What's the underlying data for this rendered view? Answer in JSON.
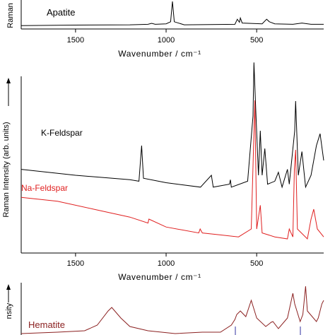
{
  "chart_data": [
    {
      "type": "line",
      "title": "",
      "xlabel": "Wavenumber / cm⁻¹",
      "ylabel": "Raman",
      "xlim": [
        1800,
        130
      ],
      "x_reversed": true,
      "xticks": [
        1500,
        1000,
        500
      ],
      "xtick_labels": [
        "1500",
        "1000",
        "500"
      ],
      "series": [
        {
          "name": "Apatite",
          "color": "#000000",
          "points": [
            [
              1800,
              0.05
            ],
            [
              1500,
              0.07
            ],
            [
              1200,
              0.08
            ],
            [
              1100,
              0.1
            ],
            [
              1080,
              0.14
            ],
            [
              1060,
              0.1
            ],
            [
              1000,
              0.12
            ],
            [
              975,
              0.2
            ],
            [
              965,
              1.0
            ],
            [
              955,
              0.2
            ],
            [
              900,
              0.08
            ],
            [
              620,
              0.1
            ],
            [
              607,
              0.3
            ],
            [
              595,
              0.18
            ],
            [
              590,
              0.35
            ],
            [
              580,
              0.15
            ],
            [
              470,
              0.12
            ],
            [
              445,
              0.3
            ],
            [
              430,
              0.2
            ],
            [
              400,
              0.12
            ],
            [
              300,
              0.1
            ],
            [
              250,
              0.15
            ],
            [
              200,
              0.1
            ],
            [
              130,
              0.1
            ]
          ]
        }
      ]
    },
    {
      "type": "line",
      "title": "",
      "xlabel": "Wavenumber / cm⁻¹",
      "ylabel": "Raman Intensity (arb. units)",
      "xlim": [
        1800,
        130
      ],
      "x_reversed": true,
      "xticks": [
        1500,
        1000,
        500
      ],
      "xtick_labels": [
        "1500",
        "1000",
        "500"
      ],
      "series": [
        {
          "name": "K-Feldspar",
          "color": "#000000",
          "points": [
            [
              1800,
              0.62
            ],
            [
              1500,
              0.6
            ],
            [
              1200,
              0.585
            ],
            [
              1150,
              0.58
            ],
            [
              1135,
              0.7
            ],
            [
              1125,
              0.59
            ],
            [
              1000,
              0.575
            ],
            [
              810,
              0.56
            ],
            [
              750,
              0.6
            ],
            [
              740,
              0.56
            ],
            [
              650,
              0.57
            ],
            [
              645,
              0.585
            ],
            [
              640,
              0.56
            ],
            [
              550,
              0.58
            ],
            [
              520,
              0.8
            ],
            [
              515,
              0.98
            ],
            [
              505,
              0.82
            ],
            [
              490,
              0.6
            ],
            [
              480,
              0.75
            ],
            [
              470,
              0.6
            ],
            [
              455,
              0.69
            ],
            [
              440,
              0.57
            ],
            [
              400,
              0.58
            ],
            [
              380,
              0.61
            ],
            [
              360,
              0.56
            ],
            [
              330,
              0.62
            ],
            [
              320,
              0.57
            ],
            [
              290,
              0.75
            ],
            [
              285,
              0.85
            ],
            [
              270,
              0.6
            ],
            [
              250,
              0.68
            ],
            [
              230,
              0.56
            ],
            [
              200,
              0.6
            ],
            [
              170,
              0.7
            ],
            [
              150,
              0.74
            ],
            [
              130,
              0.65
            ]
          ]
        },
        {
          "name": "Na-Feldspar",
          "color": "#e02020",
          "points": [
            [
              1800,
              0.36
            ],
            [
              1600,
              0.34
            ],
            [
              1400,
              0.3
            ],
            [
              1200,
              0.26
            ],
            [
              1100,
              0.23
            ],
            [
              1095,
              0.25
            ],
            [
              1000,
              0.21
            ],
            [
              820,
              0.18
            ],
            [
              812,
              0.2
            ],
            [
              800,
              0.18
            ],
            [
              700,
              0.17
            ],
            [
              600,
              0.16
            ],
            [
              530,
              0.2
            ],
            [
              510,
              0.85
            ],
            [
              500,
              0.2
            ],
            [
              480,
              0.32
            ],
            [
              470,
              0.18
            ],
            [
              400,
              0.16
            ],
            [
              330,
              0.15
            ],
            [
              320,
              0.2
            ],
            [
              300,
              0.16
            ],
            [
              292,
              0.5
            ],
            [
              285,
              0.6
            ],
            [
              275,
              0.2
            ],
            [
              220,
              0.15
            ],
            [
              200,
              0.25
            ],
            [
              185,
              0.3
            ],
            [
              165,
              0.2
            ],
            [
              130,
              0.16
            ]
          ]
        }
      ]
    },
    {
      "type": "line",
      "title": "",
      "xlabel": "",
      "ylabel": "",
      "xlim": [
        1800,
        130
      ],
      "x_reversed": true,
      "series": [
        {
          "name": "Hematite",
          "color": "#8b2020",
          "points": [
            [
              1800,
              0.28
            ],
            [
              1600,
              0.3
            ],
            [
              1450,
              0.32
            ],
            [
              1380,
              0.4
            ],
            [
              1320,
              0.6
            ],
            [
              1300,
              0.65
            ],
            [
              1250,
              0.5
            ],
            [
              1200,
              0.38
            ],
            [
              1100,
              0.32
            ],
            [
              950,
              0.28
            ],
            [
              800,
              0.3
            ],
            [
              700,
              0.3
            ],
            [
              640,
              0.4
            ],
            [
              620,
              0.48
            ],
            [
              610,
              0.55
            ],
            [
              590,
              0.6
            ],
            [
              560,
              0.52
            ],
            [
              530,
              0.75
            ],
            [
              500,
              0.5
            ],
            [
              450,
              0.38
            ],
            [
              420,
              0.44
            ],
            [
              410,
              0.45
            ],
            [
              380,
              0.35
            ],
            [
              330,
              0.5
            ],
            [
              300,
              0.85
            ],
            [
              290,
              0.7
            ],
            [
              260,
              0.45
            ],
            [
              245,
              0.55
            ],
            [
              230,
              0.95
            ],
            [
              220,
              0.6
            ],
            [
              170,
              0.45
            ],
            [
              160,
              0.5
            ],
            [
              140,
              0.7
            ],
            [
              130,
              0.75
            ]
          ]
        }
      ]
    }
  ],
  "panels": {
    "top": {
      "label": "Apatite",
      "xlabel": "Wavenumber / cm⁻¹",
      "ylabel": "Raman"
    },
    "middle": {
      "label_k": "K-Feldspar",
      "label_na": "Na-Feldspar",
      "xlabel": "Wavenumber / cm⁻¹",
      "ylabel": "Raman Intensity (arb. units)"
    },
    "bottom": {
      "label": "Hematite",
      "ylabel": "nsity"
    }
  }
}
